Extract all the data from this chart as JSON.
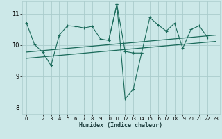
{
  "bg_color": "#cce8e8",
  "grid_color": "#aacccc",
  "line_color": "#1a6a5a",
  "xlabel": "Humidex (Indice chaleur)",
  "xlim": [
    -0.5,
    23.5
  ],
  "ylim": [
    7.8,
    11.4
  ],
  "yticks": [
    8,
    9,
    10,
    11
  ],
  "xticks": [
    0,
    1,
    2,
    3,
    4,
    5,
    6,
    7,
    8,
    9,
    10,
    11,
    12,
    13,
    14,
    15,
    16,
    17,
    18,
    19,
    20,
    21,
    22,
    23
  ],
  "series1_x": [
    0,
    1,
    2,
    3,
    4,
    5,
    6,
    7,
    8,
    9,
    10,
    11,
    12,
    13,
    14,
    15,
    16,
    17,
    18,
    19,
    20,
    21,
    22
  ],
  "series1_y": [
    10.72,
    10.02,
    9.77,
    9.35,
    10.32,
    10.62,
    10.6,
    10.55,
    10.6,
    10.2,
    10.15,
    11.3,
    9.8,
    9.75,
    9.75,
    10.88,
    10.65,
    10.45,
    10.7,
    9.9,
    10.5,
    10.62,
    10.25
  ],
  "series2_x": [
    10,
    11,
    12,
    13,
    14
  ],
  "series2_y": [
    10.15,
    11.3,
    8.28,
    8.6,
    9.75
  ],
  "trend1_x": [
    0,
    23
  ],
  "trend1_y": [
    9.78,
    10.32
  ],
  "trend2_x": [
    0,
    23
  ],
  "trend2_y": [
    9.58,
    10.12
  ]
}
